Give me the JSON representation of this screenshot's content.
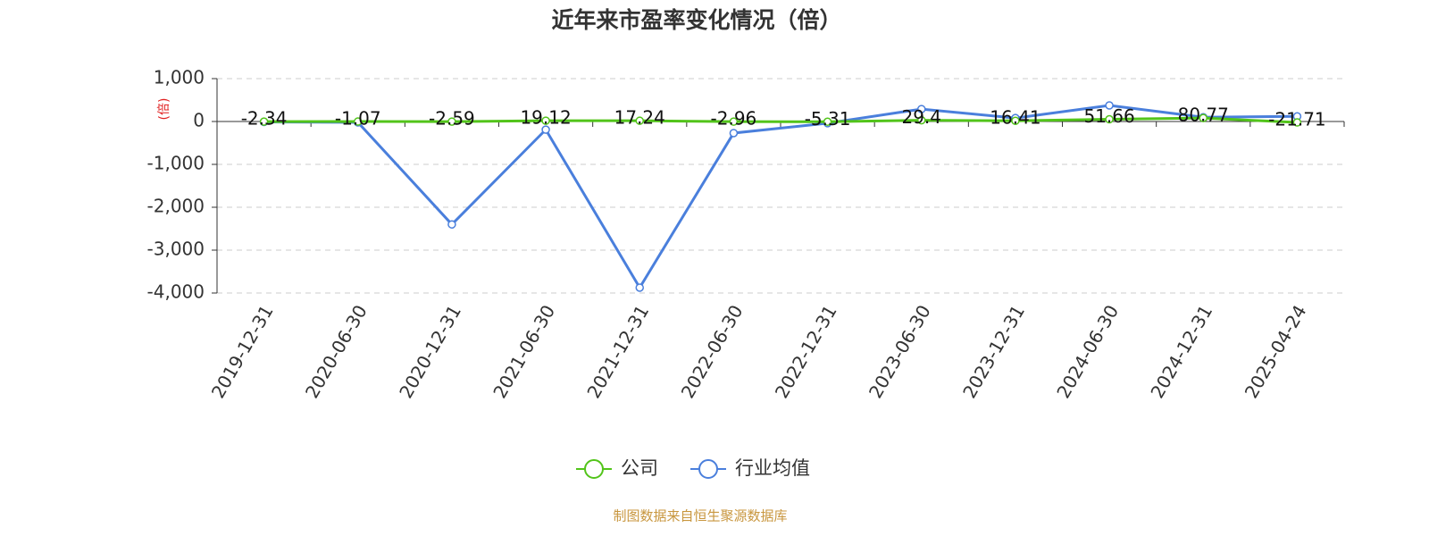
{
  "chart_data": {
    "type": "line",
    "title": "近年来市盈率变化情况（倍）",
    "y_label": "(倍)",
    "source": "制图数据来自恒生聚源数据库",
    "categories": [
      "2019-12-31",
      "2020-06-30",
      "2020-12-31",
      "2021-06-30",
      "2021-12-31",
      "2022-06-30",
      "2022-12-31",
      "2023-06-30",
      "2023-12-31",
      "2024-06-30",
      "2024-12-31",
      "2025-04-24"
    ],
    "series": [
      {
        "name": "公司",
        "color": "#52c41a",
        "values": [
          -2.34,
          -1.07,
          -2.59,
          19.12,
          17.24,
          -2.96,
          -5.31,
          29.4,
          16.41,
          51.66,
          80.77,
          -21.71
        ]
      },
      {
        "name": "行业均值",
        "color": "#4a7fdc",
        "values": [
          -10,
          -20,
          -2400,
          -190,
          -3875,
          -270,
          -40,
          290,
          80,
          375,
          100,
          120
        ]
      }
    ],
    "ylim": [
      -4000,
      1000
    ],
    "yticks": [
      {
        "value": 1000,
        "label": "1,000"
      },
      0,
      {
        "value": -1000,
        "label": "-1,000"
      },
      {
        "value": -2000,
        "label": "-2,000"
      },
      {
        "value": -3000,
        "label": "-3,000"
      },
      {
        "value": -4000,
        "label": "-4,000"
      }
    ],
    "grid": true
  }
}
